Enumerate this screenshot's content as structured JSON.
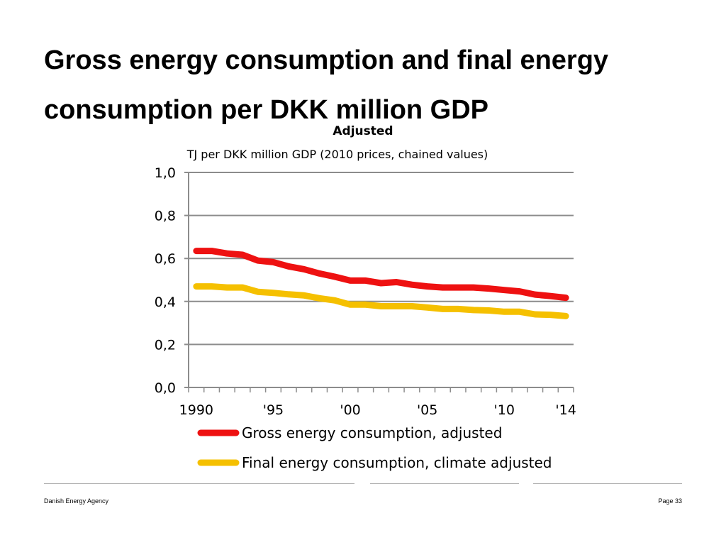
{
  "slide": {
    "title": "Gross energy consumption and final energy consumption per DKK million GDP",
    "footer_left": "Danish Energy Agency",
    "footer_right": "Page 33"
  },
  "chart_data": {
    "type": "line",
    "title": "Adjusted",
    "ylabel": "TJ per DKK million GDP (2010 prices, chained values)",
    "xlabel": "",
    "x": [
      1990,
      1991,
      1992,
      1993,
      1994,
      1995,
      1996,
      1997,
      1998,
      1999,
      2000,
      2001,
      2002,
      2003,
      2004,
      2005,
      2006,
      2007,
      2008,
      2009,
      2010,
      2011,
      2012,
      2013,
      2014
    ],
    "xlim": [
      1989.5,
      2014.5
    ],
    "ylim": [
      0,
      1
    ],
    "ytick_values": [
      0,
      0.2,
      0.4,
      0.6,
      0.8,
      1.0
    ],
    "ytick_labels": [
      "0,0",
      "0,2",
      "0,4",
      "0,6",
      "0,8",
      "1,0"
    ],
    "xtick_values": [
      1990,
      1995,
      2000,
      2005,
      2010,
      2014
    ],
    "xtick_labels": [
      "1990",
      "'95",
      "'00",
      "'05",
      "'10",
      "'14"
    ],
    "grid": true,
    "legend_position": "bottom",
    "series": [
      {
        "name": "Gross energy consumption, adjusted",
        "color": "#ee1111",
        "values": [
          0.635,
          0.635,
          0.623,
          0.617,
          0.59,
          0.583,
          0.563,
          0.55,
          0.53,
          0.515,
          0.497,
          0.497,
          0.485,
          0.49,
          0.478,
          0.47,
          0.465,
          0.465,
          0.465,
          0.46,
          0.453,
          0.447,
          0.432,
          0.425,
          0.417
        ]
      },
      {
        "name": "Final energy consumption, climate adjusted",
        "color": "#f5c000",
        "values": [
          0.47,
          0.47,
          0.465,
          0.465,
          0.445,
          0.44,
          0.433,
          0.428,
          0.415,
          0.405,
          0.385,
          0.385,
          0.378,
          0.378,
          0.378,
          0.372,
          0.365,
          0.365,
          0.36,
          0.358,
          0.352,
          0.352,
          0.34,
          0.338,
          0.332
        ]
      }
    ]
  }
}
